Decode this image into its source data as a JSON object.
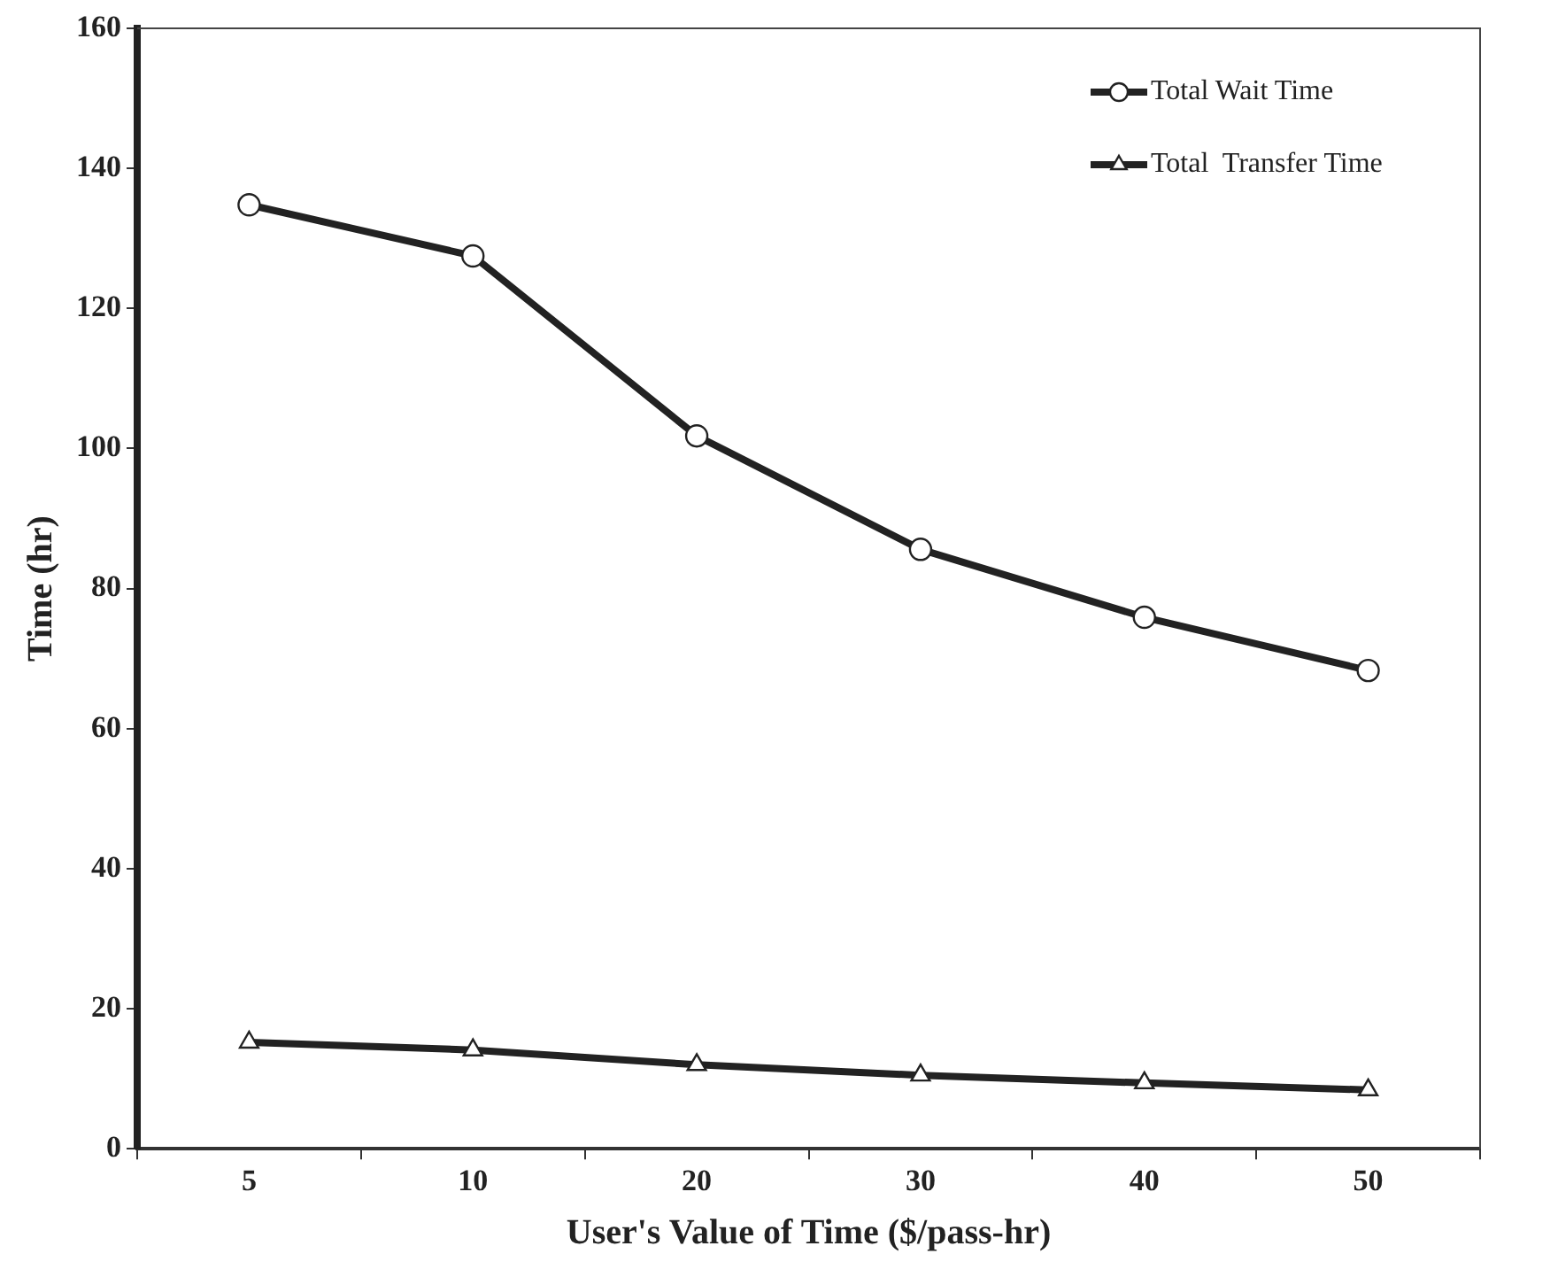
{
  "chart_data": {
    "type": "line",
    "xlabel": "User's Value of Time ($/pass-hr)",
    "ylabel": "Time (hr)",
    "categories": [
      "5",
      "10",
      "20",
      "30",
      "40",
      "50"
    ],
    "series": [
      {
        "name": "Total Wait Time",
        "color": "#222222",
        "marker": "circle",
        "values": [
          134.8,
          127.5,
          101.8,
          85.6,
          75.9,
          68.3
        ]
      },
      {
        "name": "Total  Transfer Time",
        "color": "#222222",
        "marker": "triangle",
        "values": [
          15.2,
          14.1,
          12.0,
          10.5,
          9.4,
          8.4
        ]
      }
    ],
    "ylim": [
      0,
      160
    ],
    "yticks": [
      0,
      20,
      40,
      60,
      80,
      100,
      120,
      140,
      160
    ],
    "grid": false,
    "legend": "top right",
    "line_style": "solid"
  }
}
